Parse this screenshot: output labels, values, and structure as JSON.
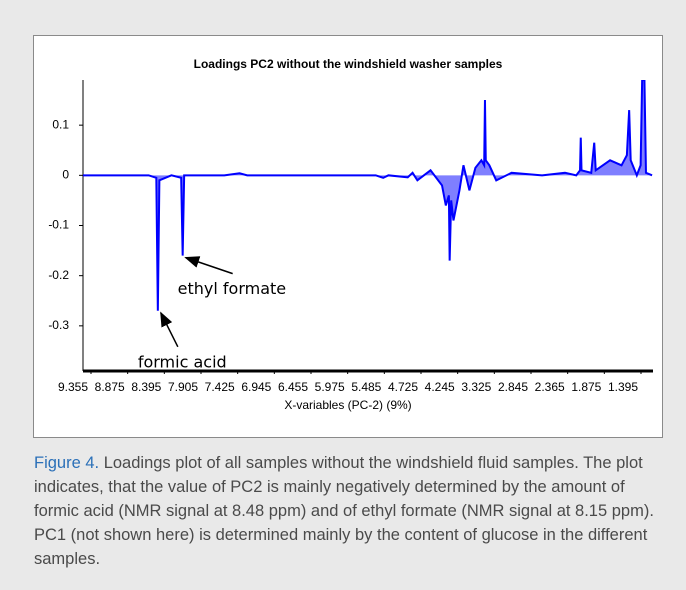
{
  "chart_data": {
    "type": "line",
    "title": "Loadings PC2 without the windshield washer samples",
    "xlabel": "X-variables (PC-2) (9%)",
    "xlim": [
      9.46,
      1.25
    ],
    "xticks": [
      9.355,
      8.875,
      8.395,
      7.905,
      7.425,
      6.945,
      6.455,
      5.975,
      5.485,
      4.725,
      4.245,
      3.325,
      2.845,
      2.365,
      1.875,
      1.395
    ],
    "ylim": [
      -0.39,
      0.19
    ],
    "yticks": [
      -0.3,
      -0.2,
      -0.1,
      0,
      0.1
    ],
    "series": [
      {
        "color": "#0000ff",
        "x": [
          9.46,
          8.6,
          8.5,
          8.48,
          8.46,
          8.3,
          8.17,
          8.15,
          8.13,
          7.6,
          7.4,
          7.3,
          5.6,
          5.5,
          5.4,
          5.0,
          4.9,
          4.8,
          4.6,
          4.45,
          4.4,
          4.36,
          4.35,
          4.33,
          4.3,
          4.2,
          4.1,
          3.95,
          3.8,
          3.65,
          3.58,
          3.56,
          3.54,
          3.45,
          3.3,
          3.1,
          2.7,
          2.4,
          2.25,
          2.2,
          2.19,
          2.18,
          2.05,
          2.01,
          1.99,
          1.8,
          1.65,
          1.58,
          1.55,
          1.53,
          1.45,
          1.4,
          1.38,
          1.35,
          1.33,
          1.25
        ],
        "values": [
          0,
          0,
          -0.005,
          -0.27,
          -0.01,
          0,
          -0.005,
          -0.16,
          0,
          0,
          0.004,
          0,
          0,
          -0.005,
          0,
          -0.004,
          0.005,
          -0.01,
          0.01,
          -0.02,
          -0.06,
          -0.04,
          -0.17,
          -0.05,
          -0.09,
          -0.03,
          0.02,
          -0.03,
          0.015,
          0.03,
          0.02,
          0.15,
          0.03,
          0.02,
          -0.01,
          0.005,
          0,
          0.005,
          0,
          0.01,
          0.075,
          0.01,
          0.005,
          0.065,
          0.01,
          0.03,
          0.02,
          0.04,
          0.13,
          0.03,
          0,
          0.02,
          0.19,
          0.19,
          0.005,
          0
        ]
      }
    ],
    "annotations": [
      {
        "text": "formic acid",
        "x": 8.48,
        "y": -0.27
      },
      {
        "text": "ethyl formate",
        "x": 8.15,
        "y": -0.16
      }
    ]
  },
  "caption": {
    "label": "Figure 4.",
    "text": " Loadings plot of all samples without the windshield fluid samples. The plot indicates, that the value of PC2 is mainly negatively determined by the amount of formic acid (NMR signal at 8.48 ppm) and of ethyl formate (NMR signal at 8.15 ppm). PC1 (not shown here) is determined mainly by the content of glucose in the different samples."
  }
}
